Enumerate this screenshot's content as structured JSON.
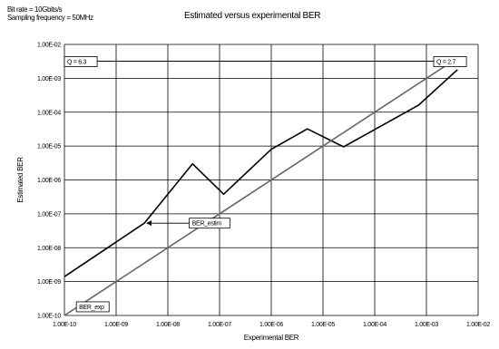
{
  "header": {
    "line1": "Bit rate = 10Gbits/s",
    "line2": "Sampling frequency = 50MHz"
  },
  "chart_data": {
    "type": "line",
    "title": "Estimated versus experimental BER",
    "xlabel": "Experimental BER",
    "ylabel": "Estimated BER",
    "xscale": "log",
    "yscale": "log",
    "xlim": [
      1e-10,
      0.01
    ],
    "ylim": [
      1e-10,
      0.01
    ],
    "grid": true,
    "x_ticks": [
      "1.00E-10",
      "1.00E-09",
      "1.00E-08",
      "1.00E-07",
      "1.00E-06",
      "1.00E-05",
      "1.00E-04",
      "1.00E-03",
      "1.00E-02"
    ],
    "y_ticks": [
      "1.00E-10",
      "1.00E-09",
      "1.00E-08",
      "1.00E-07",
      "1.00E-06",
      "1.00E-05",
      "1.00E-04",
      "1.00E-03",
      "1.00E-02"
    ],
    "series": [
      {
        "name": "BER_estim",
        "color": "#000000",
        "x": [
          1e-10,
          3.5e-09,
          3e-08,
          1.2e-07,
          1e-06,
          5e-06,
          2.5e-05,
          0.0007,
          0.004
        ],
        "y": [
          1.4e-09,
          5.3e-08,
          3e-06,
          3.8e-07,
          8e-06,
          3.2e-05,
          9.5e-06,
          0.00016,
          0.0018
        ]
      },
      {
        "name": "BER_exp",
        "color": "#666666",
        "x": [
          1e-10,
          0.004
        ],
        "y": [
          1e-10,
          0.004
        ]
      }
    ],
    "annotations": [
      {
        "text": "BER_estim",
        "box": true,
        "arrow_to": [
          3.5e-09,
          5.3e-08
        ],
        "anchor": [
          2.6e-08,
          5.3e-08
        ]
      },
      {
        "text": "BER_exp",
        "box": true,
        "anchor": [
          1.7e-10,
          1.8e-10
        ]
      },
      {
        "text": "Q = 6.3",
        "box": true,
        "anchor": [
          1e-10,
          0.0032
        ]
      },
      {
        "text": "Q = 2.7",
        "box": true,
        "anchor": [
          0.0015,
          0.0032
        ]
      }
    ],
    "q_reference_line": {
      "y": 0.0032,
      "x": [
        1e-10,
        0.004
      ]
    }
  }
}
